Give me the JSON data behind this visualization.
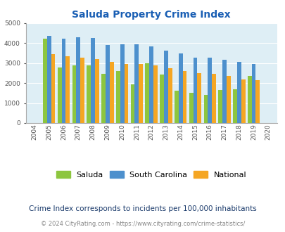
{
  "title": "Saluda Property Crime Index",
  "years": [
    "2004",
    "2005",
    "2006",
    "2007",
    "2008",
    "2009",
    "2010",
    "2011",
    "2012",
    "2013",
    "2014",
    "2015",
    "2016",
    "2017",
    "2018",
    "2019",
    "2020"
  ],
  "saluda": [
    0,
    4220,
    2780,
    2900,
    2900,
    2480,
    2600,
    1950,
    3000,
    2420,
    1620,
    1500,
    1400,
    1650,
    1700,
    2340,
    0
  ],
  "south_carolina": [
    0,
    4380,
    4230,
    4280,
    4250,
    3920,
    3930,
    3930,
    3840,
    3640,
    3480,
    3280,
    3260,
    3170,
    3060,
    2960,
    0
  ],
  "national": [
    0,
    3450,
    3340,
    3260,
    3220,
    3060,
    2960,
    2960,
    2880,
    2740,
    2620,
    2490,
    2460,
    2360,
    2190,
    2130,
    0
  ],
  "saluda_color": "#8dc63f",
  "sc_color": "#4d90cd",
  "national_color": "#f5a623",
  "bg_color": "#deeef5",
  "title_color": "#1a5fb4",
  "subtitle": "Crime Index corresponds to incidents per 100,000 inhabitants",
  "subtitle_color": "#1a3a6b",
  "footer": "© 2024 CityRating.com - https://www.cityrating.com/crime-statistics/",
  "footer_color": "#888888",
  "ylim": [
    0,
    5000
  ],
  "yticks": [
    0,
    1000,
    2000,
    3000,
    4000,
    5000
  ],
  "bar_width": 0.28
}
